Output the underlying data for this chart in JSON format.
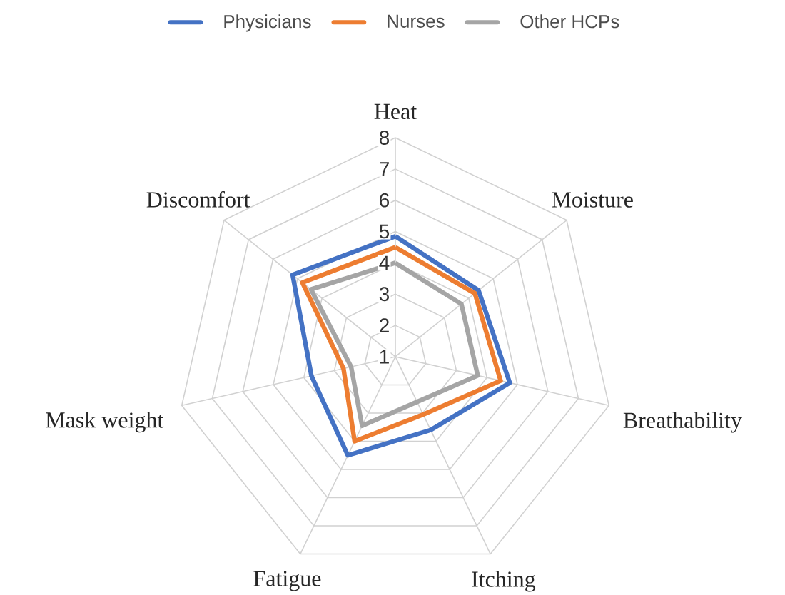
{
  "chart_data": {
    "type": "radar",
    "categories": [
      "Heat",
      "Moisture",
      "Breathability",
      "Itching",
      "Fatigue",
      "Mask weight",
      "Discomfort"
    ],
    "series": [
      {
        "name": "Physicians",
        "color": "#4472c4",
        "values": [
          4.85,
          4.4,
          4.75,
          3.6,
          4.5,
          3.75,
          5.2
        ]
      },
      {
        "name": "Nurses",
        "color": "#ed7d31",
        "values": [
          4.5,
          4.25,
          4.45,
          3.05,
          4.0,
          2.7,
          4.8
        ]
      },
      {
        "name": "Other HCPs",
        "color": "#a5a5a5",
        "values": [
          4.0,
          3.7,
          3.7,
          2.6,
          3.45,
          2.45,
          4.45
        ]
      }
    ],
    "ylim": [
      1,
      8
    ],
    "yticks": [
      1,
      2,
      3,
      4,
      5,
      6,
      7,
      8
    ],
    "grid": true,
    "legend": "top"
  }
}
